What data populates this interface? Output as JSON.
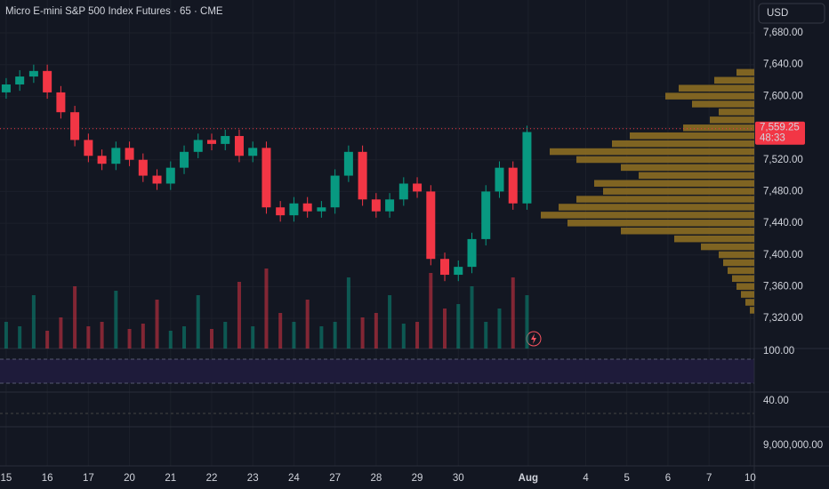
{
  "header": {
    "title": "Micro E-mini S&P 500 Index Futures · 65 · CME",
    "currency": "USD"
  },
  "chart_data": {
    "type": "candlestick",
    "x": [
      0,
      0.33,
      0.67,
      1,
      1.33,
      1.67,
      2,
      2.33,
      2.67,
      3,
      3.33,
      3.67,
      4,
      4.33,
      4.67,
      5,
      5.33,
      5.67,
      6,
      6.33,
      6.67,
      7,
      7.33,
      7.67,
      8,
      8.33,
      8.67,
      9,
      9.33,
      9.67,
      10,
      10.33,
      10.67,
      11,
      11.33,
      11.67,
      12,
      12.33,
      12.67
    ],
    "open": [
      7605,
      7615,
      7625,
      7632,
      7605,
      7580,
      7545,
      7525,
      7515,
      7535,
      7520,
      7500,
      7490,
      7510,
      7530,
      7545,
      7540,
      7550,
      7525,
      7535,
      7460,
      7450,
      7465,
      7455,
      7460,
      7500,
      7530,
      7470,
      7455,
      7470,
      7490,
      7480,
      7395,
      7375,
      7385,
      7420,
      7480,
      7510,
      7465
    ],
    "high": [
      7623,
      7633,
      7640,
      7640,
      7613,
      7588,
      7553,
      7533,
      7543,
      7543,
      7528,
      7508,
      7518,
      7538,
      7553,
      7553,
      7558,
      7558,
      7543,
      7543,
      7468,
      7473,
      7473,
      7468,
      7508,
      7538,
      7538,
      7478,
      7478,
      7498,
      7498,
      7488,
      7403,
      7393,
      7428,
      7488,
      7518,
      7518,
      7563
    ],
    "low": [
      7597,
      7607,
      7617,
      7597,
      7572,
      7537,
      7517,
      7507,
      7507,
      7512,
      7492,
      7482,
      7482,
      7502,
      7522,
      7532,
      7532,
      7517,
      7517,
      7452,
      7442,
      7442,
      7447,
      7447,
      7452,
      7492,
      7462,
      7447,
      7447,
      7462,
      7472,
      7387,
      7367,
      7367,
      7377,
      7412,
      7472,
      7457,
      7457
    ],
    "close": [
      7615,
      7625,
      7632,
      7605,
      7580,
      7545,
      7525,
      7515,
      7535,
      7520,
      7500,
      7490,
      7510,
      7530,
      7545,
      7540,
      7550,
      7525,
      7535,
      7460,
      7450,
      7465,
      7455,
      7460,
      7500,
      7530,
      7470,
      7455,
      7470,
      7490,
      7480,
      7395,
      7375,
      7385,
      7420,
      7480,
      7510,
      7465,
      7555
    ],
    "volume": [
      30,
      25,
      60,
      20,
      35,
      70,
      25,
      30,
      65,
      22,
      28,
      55,
      20,
      25,
      60,
      22,
      30,
      75,
      25,
      90,
      40,
      30,
      55,
      25,
      30,
      80,
      35,
      40,
      60,
      28,
      30,
      85,
      45,
      50,
      70,
      30,
      45,
      80,
      60
    ],
    "up_color": "#089981",
    "down_color": "#f23645",
    "xlim": [
      -0.15,
      18.2
    ],
    "xticks": [
      {
        "value": 0,
        "label": "15"
      },
      {
        "value": 1,
        "label": "16"
      },
      {
        "value": 2,
        "label": "17"
      },
      {
        "value": 3,
        "label": "20"
      },
      {
        "value": 4,
        "label": "21"
      },
      {
        "value": 5,
        "label": "22"
      },
      {
        "value": 6,
        "label": "23"
      },
      {
        "value": 7,
        "label": "24"
      },
      {
        "value": 8,
        "label": "27"
      },
      {
        "value": 9,
        "label": "28"
      },
      {
        "value": 10,
        "label": "29"
      },
      {
        "value": 11,
        "label": "30"
      },
      {
        "value": 12.7,
        "label": "Aug"
      },
      {
        "value": 14.1,
        "label": "4"
      },
      {
        "value": 15.1,
        "label": "5"
      },
      {
        "value": 16.1,
        "label": "6"
      },
      {
        "value": 17.1,
        "label": "7"
      },
      {
        "value": 18.1,
        "label": "10"
      }
    ],
    "ylim": [
      7282,
      7721.5
    ],
    "yticks": [
      {
        "value": 7320,
        "label": "7,320.00"
      },
      {
        "value": 7360,
        "label": "7,360.00"
      },
      {
        "value": 7400,
        "label": "7,400.00"
      },
      {
        "value": 7440,
        "label": "7,440.00"
      },
      {
        "value": 7480,
        "label": "7,480.00"
      },
      {
        "value": 7520,
        "label": "7,520.00"
      },
      {
        "value": 7560,
        "label": "7,560.00"
      },
      {
        "value": 7600,
        "label": "7,600.00"
      },
      {
        "value": 7640,
        "label": "7,640.00"
      },
      {
        "value": 7680,
        "label": "7,680.00"
      }
    ],
    "last_price": {
      "value": 7559.25,
      "label": "7,559.25",
      "countdown": "48:33"
    },
    "profile": {
      "prices": [
        7630,
        7620,
        7610,
        7600,
        7590,
        7580,
        7570,
        7560,
        7550,
        7540,
        7530,
        7520,
        7510,
        7500,
        7490,
        7480,
        7470,
        7460,
        7450,
        7440,
        7430,
        7420,
        7410,
        7400,
        7390,
        7380,
        7370,
        7360,
        7350,
        7340,
        7330
      ],
      "values": [
        20,
        45,
        85,
        100,
        70,
        40,
        50,
        80,
        140,
        160,
        230,
        200,
        150,
        130,
        180,
        170,
        200,
        220,
        240,
        210,
        150,
        90,
        60,
        40,
        35,
        30,
        25,
        20,
        15,
        10,
        5
      ],
      "color": "#8c6d22"
    },
    "indicators": [
      {
        "label": "100.00"
      },
      {
        "label": "40.00"
      },
      {
        "label": "9,000,000.00"
      }
    ]
  }
}
